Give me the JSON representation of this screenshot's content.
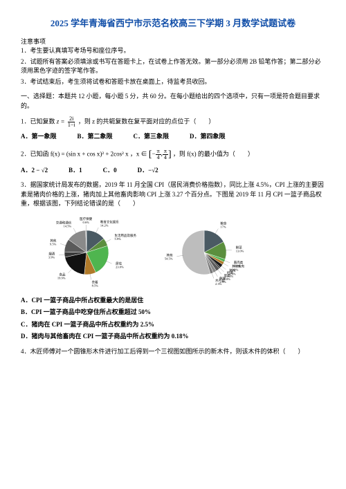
{
  "title": "2025 学年青海省西宁市示范名校高三下学期 3 月数学试题试卷",
  "notice_head": "注意事项",
  "instructions": [
    "1．考生要认真填写考场号和座位序号。",
    "2．试题所有答案必须填涂或书写在答题卡上，在试卷上作答无效。第一部分必须用 2B 铅笔作答；第二部分必须用黑色字迹的签字笔作答。",
    "3．考试结束后，考生须将试卷和答题卡放在桌面上，待监考员收回。"
  ],
  "part1_head": "一、选择题：本题共 12 小题，每小题 5 分，共 60 分。在每小题给出的四个选项中，只有一项是符合题目要求的。",
  "q1": {
    "stem_a": "1．已知复数 ",
    "stem_b": "，则 z 的共轭复数在复平面对应的点位于（　　）",
    "opts": [
      "A．第一象限",
      "B．第二象限",
      "C．第三象限",
      "D．第四象限"
    ]
  },
  "q2": {
    "stem_a": "2．已知函 f(x) = (sin x + cos x)² + 2cos² x ，x ∈ ",
    "stem_b": " ，则 f(x) 的最小值为（　　）",
    "opts": [
      "A．2 − √2",
      "B．1",
      "C．0",
      "D．−√2"
    ]
  },
  "q3": {
    "stem": "3．据国家统计局发布的数据，2019 年 11 月全国 CPI（居民消费价格指数），同比上涨 4.5%，CPI 上涨的主要因素是猪肉价格的上涨，猪肉加上其他畜肉影响 CPI 上涨 3.27 个百分点。下图是 2019 年 11 月 CPI 一篮子商品权重，根据该图，下列结论错误的是（　　）",
    "statements": [
      "A．CPI 一篮子商品中所占权重最大的是居住",
      "B．CPI 一篮子商品中吃穿住所占权重超过 50%",
      "C．猪肉在 CPI 一篮子商品中所占权重约为 2.5%",
      "D．猪肉与其他畜肉在 CPI 一篮子商品中所占权重约为 0.18%"
    ]
  },
  "q4": {
    "stem": "4．木匠师傅对一个圆锥形木件进行加工后得到一个三视图如图所示的新木件，则该木件的体积（　　）"
  },
  "pie1": {
    "slices": [
      {
        "label": "教育文化娱乐 14.2%",
        "value": 14.2,
        "color": "#4a5a63"
      },
      {
        "label": "生活用品及服务 5.9%",
        "value": 5.9,
        "color": "#5b8f3e"
      },
      {
        "label": "居住 23.0%",
        "value": 23.0,
        "color": "#4fb54f"
      },
      {
        "label": "衣着 8.5%",
        "value": 8.5,
        "color": "#b07a2a"
      },
      {
        "label": "食品 19.9%",
        "value": 19.9,
        "color": "#111111"
      },
      {
        "label": "烟酒 3.9%",
        "value": 3.9,
        "color": "#3a3a3a"
      },
      {
        "label": "其他 9.5%",
        "value": 9.5,
        "color": "#5a5a5a"
      },
      {
        "label": "交通和通信 14.5%",
        "value": 14.5,
        "color": "#8a8a8a"
      },
      {
        "label": "医疗保健 0.6%",
        "value": 0.6,
        "color": "#c0c0c0"
      }
    ],
    "label_fontsize": 4.5
  },
  "pie2": {
    "slices": [
      {
        "label": "粮食 17%",
        "value": 17,
        "color": "#4a5a63"
      },
      {
        "label": "鲜菜 13.0%",
        "value": 13,
        "color": "#5b8f3e"
      },
      {
        "label": "畜肉类 2.1%",
        "value": 2.1,
        "color": "#4fb54f"
      },
      {
        "label": "其他畜肉 2.2%",
        "value": 2.2,
        "color": "#b07a2a"
      },
      {
        "label": "猪肉 2.5%",
        "value": 2.5,
        "color": "#1a1a1a"
      },
      {
        "label": "奶类 1.1%",
        "value": 1.1,
        "color": "#3a3a3a"
      },
      {
        "label": "蛋类 2.8%",
        "value": 2.8,
        "color": "#5a5a5a"
      },
      {
        "label": "鲜果 2.5%",
        "value": 2.5,
        "color": "#8a8a8a"
      },
      {
        "label": "水产品 2.3%",
        "value": 2.3,
        "color": "#7a7a7a"
      },
      {
        "label": "其他 54.5%",
        "value": 54.5,
        "color": "#bdbdbd"
      }
    ],
    "label_fontsize": 4.5
  }
}
